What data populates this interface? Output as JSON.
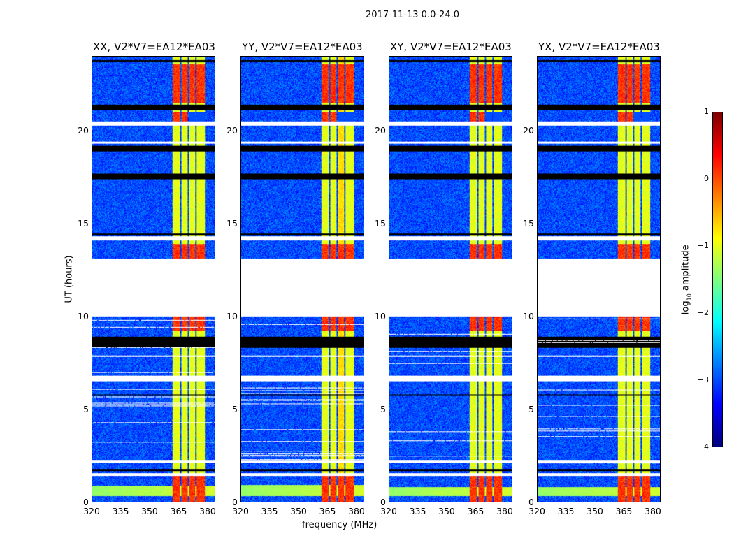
{
  "chart_data": {
    "type": "heatmap",
    "title": "2017-11-13 0.0-24.0",
    "xlabel": "frequency (MHz)",
    "ylabel": "UT (hours)",
    "xlim": [
      320,
      384
    ],
    "ylim": [
      0,
      24
    ],
    "xticks": [
      "320",
      "335",
      "350",
      "365",
      "380"
    ],
    "xtick_values": [
      320,
      335,
      350,
      365,
      380
    ],
    "yticks": [
      "0",
      "5",
      "10",
      "15",
      "20"
    ],
    "ytick_values": [
      0,
      5,
      10,
      15,
      20
    ],
    "colorbar": {
      "label": "log10 amplitude",
      "label_main": "log",
      "label_sub": "10",
      "label_rest": " amplitude",
      "colormap": "jet",
      "range": [
        -4,
        1
      ],
      "ticks": [
        "1",
        "0",
        "−1",
        "−2",
        "−3",
        "−4"
      ],
      "tick_values": [
        1,
        0,
        -1,
        -2,
        -3,
        -4
      ]
    },
    "panels": [
      {
        "title": "XX, V2*V7=EA12*EA03",
        "low_freq_line": 0.55
      },
      {
        "title": "YY, V2*V7=EA12*EA03",
        "low_freq_line": 0.6
      },
      {
        "title": "XY, V2*V7=EA12*EA03",
        "low_freq_line": 0.5
      },
      {
        "title": "YX, V2*V7=EA12*EA03",
        "low_freq_line": 0.5
      }
    ],
    "background_level": -3,
    "rfi_channels_mhz": [
      [
        362,
        366
      ],
      [
        366.5,
        370
      ],
      [
        370.5,
        374
      ],
      [
        374.5,
        379
      ]
    ],
    "rfi_level": -1,
    "strong_rfi_hours": [
      [
        0,
        1.4
      ],
      [
        13.1,
        13.9
      ],
      [
        9.2,
        10.0
      ],
      [
        21.5,
        23.6
      ],
      [
        20.3,
        21.0
      ]
    ],
    "strong_rfi_level": 0,
    "no_data_hours": [
      [
        10.0,
        13.1
      ],
      [
        20.3,
        20.5
      ],
      [
        6.5,
        6.8
      ],
      [
        1.4,
        1.55
      ],
      [
        14.1,
        14.3
      ],
      [
        19.3,
        19.4
      ],
      [
        2.1,
        2.2
      ],
      [
        7.8,
        7.9
      ]
    ],
    "flagged_hours": [
      [
        8.3,
        8.9
      ],
      [
        18.9,
        19.2
      ],
      [
        17.4,
        17.7
      ],
      [
        21.1,
        21.4
      ],
      [
        1.65,
        1.75
      ],
      [
        14.35,
        14.45
      ],
      [
        23.7,
        23.8
      ],
      [
        5.7,
        5.8
      ]
    ]
  }
}
